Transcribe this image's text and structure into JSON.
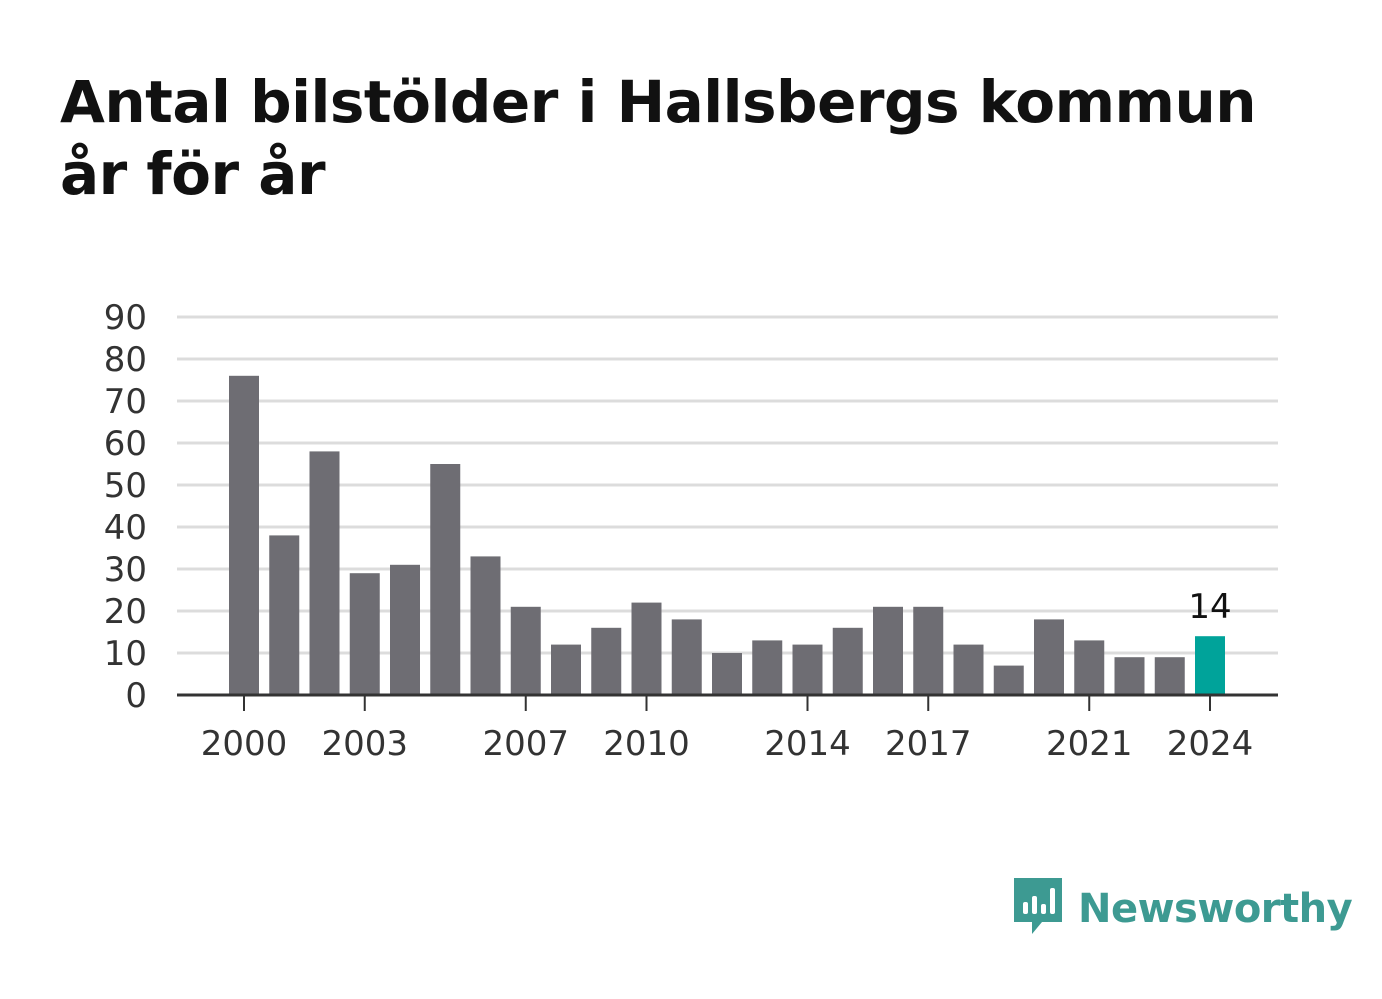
{
  "title": "Antal bilstölder i Hallsbergs kommun år för år",
  "brand": {
    "name": "Newsworthy",
    "color": "#3d9a92",
    "icon": "bar-chart-speech-bubble-icon"
  },
  "colors": {
    "bar": "#6e6d73",
    "highlight": "#00a39a",
    "grid": "#dcdcdc",
    "baseline": "#333333"
  },
  "chart_data": {
    "type": "bar",
    "title": "Antal bilstölder i Hallsbergs kommun år för år",
    "xlabel": "",
    "ylabel": "",
    "categories": [
      "2000",
      "2001",
      "2002",
      "2003",
      "2004",
      "2005",
      "2006",
      "2007",
      "2008",
      "2009",
      "2010",
      "2011",
      "2012",
      "2013",
      "2014",
      "2015",
      "2016",
      "2017",
      "2018",
      "2019",
      "2020",
      "2021",
      "2022",
      "2023",
      "2024"
    ],
    "values": [
      76,
      38,
      58,
      29,
      31,
      55,
      33,
      21,
      12,
      16,
      22,
      18,
      10,
      13,
      12,
      16,
      21,
      21,
      12,
      7,
      18,
      13,
      9,
      9,
      14
    ],
    "x_tick_labels": [
      "2000",
      "2003",
      "2007",
      "2010",
      "2014",
      "2017",
      "2021",
      "2024"
    ],
    "y_ticks": [
      0,
      10,
      20,
      30,
      40,
      50,
      60,
      70,
      80,
      90
    ],
    "ylim": [
      0,
      90
    ],
    "grid": true,
    "highlight": {
      "category": "2024",
      "value_label": "14"
    }
  }
}
